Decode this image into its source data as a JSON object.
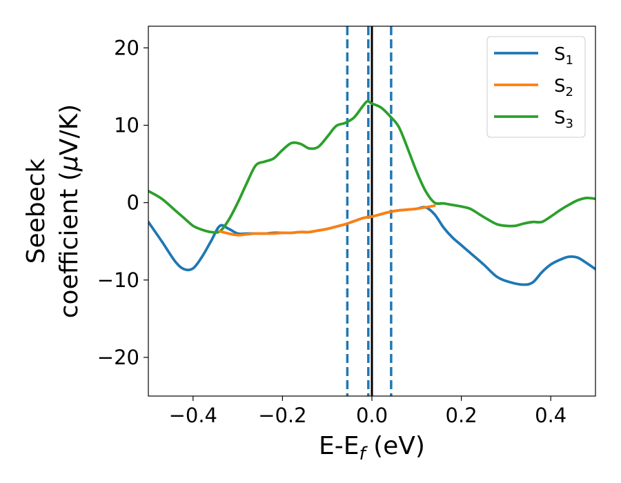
{
  "chart_data": {
    "type": "line",
    "title": "",
    "xlabel": {
      "main": "E-E",
      "sub": "f",
      "unit": " (eV)"
    },
    "ylabel": {
      "line1": "Seebeck",
      "line2_prefix": "coefficient  (",
      "mu": "μ",
      "line2_suffix": "V/K)"
    },
    "xlim": [
      -0.5,
      0.5
    ],
    "ylim": [
      -25,
      22.8
    ],
    "xticks": [
      -0.4,
      -0.2,
      0.0,
      0.2,
      0.4
    ],
    "xtick_labels": [
      "−0.4",
      "−0.2",
      "0.0",
      "0.2",
      "0.4"
    ],
    "yticks": [
      -20,
      -10,
      0,
      10,
      20
    ],
    "ytick_labels": [
      "−20",
      "−10",
      "0",
      "10",
      "20"
    ],
    "grid": false,
    "legend_position": "top-right",
    "vlines": [
      {
        "x": -0.055,
        "style": "dashed",
        "color": "#1f77b4"
      },
      {
        "x": -0.008,
        "style": "dashed",
        "color": "#1f77b4"
      },
      {
        "x": 0.043,
        "style": "dashed",
        "color": "#1f77b4"
      },
      {
        "x": 0.0,
        "style": "solid",
        "color": "#000000"
      }
    ],
    "series": [
      {
        "name": "S",
        "sub": "1",
        "color": "#1f77b4",
        "x": [
          -0.5,
          -0.47,
          -0.44,
          -0.42,
          -0.4,
          -0.38,
          -0.36,
          -0.34,
          -0.32,
          -0.3,
          -0.28,
          -0.26,
          -0.24,
          -0.22,
          -0.2,
          -0.18,
          -0.16,
          -0.14,
          -0.12,
          -0.1,
          -0.08,
          -0.06,
          -0.04,
          -0.02,
          0.0,
          0.02,
          0.04,
          0.06,
          0.08,
          0.1,
          0.12,
          0.14,
          0.16,
          0.18,
          0.2,
          0.22,
          0.25,
          0.28,
          0.31,
          0.34,
          0.36,
          0.38,
          0.4,
          0.42,
          0.44,
          0.46,
          0.48,
          0.5
        ],
        "y": [
          -2.5,
          -5.0,
          -7.6,
          -8.6,
          -8.5,
          -7.0,
          -5.0,
          -3.0,
          -3.4,
          -4.0,
          -4.0,
          -4.0,
          -4.0,
          -3.9,
          -3.9,
          -3.9,
          -3.8,
          -3.8,
          -3.6,
          -3.4,
          -3.1,
          -2.8,
          -2.4,
          -2.0,
          -1.8,
          -1.5,
          -1.2,
          -1.0,
          -0.9,
          -0.8,
          -0.6,
          -1.5,
          -3.2,
          -4.5,
          -5.5,
          -6.5,
          -8.0,
          -9.6,
          -10.3,
          -10.6,
          -10.3,
          -9.0,
          -8.0,
          -7.4,
          -7.0,
          -7.1,
          -7.8,
          -8.6
        ]
      },
      {
        "name": "S",
        "sub": "2",
        "color": "#ff7f0e",
        "x": [
          -0.34,
          -0.32,
          -0.3,
          -0.28,
          -0.26,
          -0.24,
          -0.22,
          -0.2,
          -0.18,
          -0.16,
          -0.14,
          -0.12,
          -0.1,
          -0.08,
          -0.06,
          -0.04,
          -0.02,
          0.0,
          0.02,
          0.04,
          0.06,
          0.08,
          0.1,
          0.12,
          0.14
        ],
        "y": [
          -3.7,
          -4.0,
          -4.2,
          -4.1,
          -4.0,
          -4.0,
          -4.0,
          -3.9,
          -3.9,
          -3.8,
          -3.8,
          -3.6,
          -3.4,
          -3.1,
          -2.8,
          -2.4,
          -2.0,
          -1.8,
          -1.5,
          -1.2,
          -1.0,
          -0.9,
          -0.8,
          -0.6,
          -0.4
        ]
      },
      {
        "name": "S",
        "sub": "3",
        "color": "#2ca02c",
        "x": [
          -0.5,
          -0.47,
          -0.44,
          -0.42,
          -0.4,
          -0.38,
          -0.36,
          -0.34,
          -0.32,
          -0.3,
          -0.28,
          -0.26,
          -0.24,
          -0.22,
          -0.2,
          -0.18,
          -0.16,
          -0.14,
          -0.12,
          -0.1,
          -0.08,
          -0.06,
          -0.04,
          -0.02,
          -0.01,
          0.0,
          0.02,
          0.04,
          0.06,
          0.08,
          0.1,
          0.12,
          0.14,
          0.16,
          0.18,
          0.2,
          0.22,
          0.24,
          0.26,
          0.28,
          0.3,
          0.32,
          0.34,
          0.36,
          0.38,
          0.4,
          0.42,
          0.44,
          0.46,
          0.48,
          0.5
        ],
        "y": [
          1.5,
          0.5,
          -1.0,
          -2.0,
          -3.0,
          -3.5,
          -3.8,
          -3.7,
          -2.2,
          0.0,
          2.5,
          4.8,
          5.3,
          5.7,
          6.8,
          7.7,
          7.6,
          7.0,
          7.2,
          8.5,
          9.9,
          10.3,
          11.0,
          12.5,
          13.1,
          12.8,
          12.3,
          11.2,
          9.8,
          7.0,
          4.0,
          1.5,
          0.0,
          -0.1,
          -0.3,
          -0.5,
          -0.8,
          -1.5,
          -2.2,
          -2.8,
          -3.0,
          -3.0,
          -2.7,
          -2.5,
          -2.5,
          -1.8,
          -1.0,
          -0.3,
          0.3,
          0.6,
          0.5
        ]
      }
    ]
  }
}
